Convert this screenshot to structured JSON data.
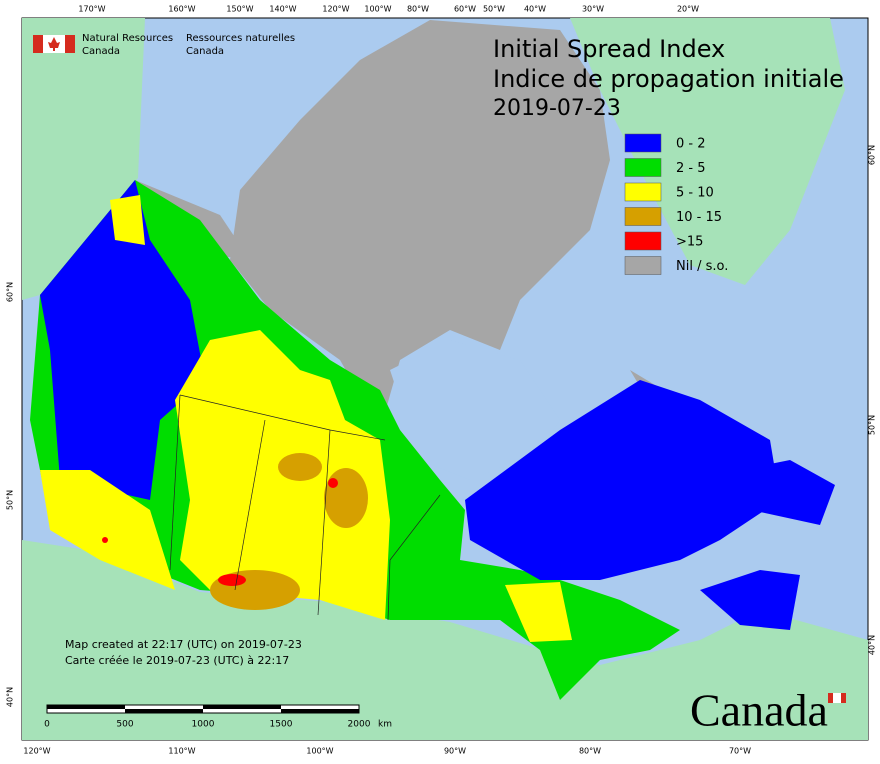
{
  "header": {
    "org_en": [
      "Natural Resources",
      "Canada"
    ],
    "org_fr": [
      "Ressources naturelles",
      "Canada"
    ]
  },
  "title": [
    "Initial Spread Index",
    "Indice de propagation initiale",
    "2019-07-23"
  ],
  "legend": [
    {
      "label": "0 - 2",
      "color": "#0000ff"
    },
    {
      "label": "2 - 5",
      "color": "#00dd00"
    },
    {
      "label": "5 - 10",
      "color": "#ffff00"
    },
    {
      "label": "10 - 15",
      "color": "#d6a000"
    },
    {
      "label": ">15",
      "color": "#ff0000"
    },
    {
      "label": "Nil / s.o.",
      "color": "#a6a6a6"
    }
  ],
  "graticule": {
    "top": [
      "170°W",
      "160°W",
      "150°W",
      "140°W",
      "120°W",
      "100°W",
      "80°W",
      "60°W",
      "50°W",
      "40°W",
      "30°W",
      "20°W"
    ],
    "bottom": [
      "120°W",
      "110°W",
      "100°W",
      "90°W",
      "80°W",
      "70°W"
    ],
    "left": [
      "60°N",
      "50°N",
      "40°N"
    ],
    "right": [
      "60°N",
      "50°N",
      "40°N"
    ]
  },
  "notes": [
    "Map created at 22:17 (UTC) on 2019-07-23",
    "Carte créée le 2019-07-23 (UTC) à 22:17"
  ],
  "scale": [
    "0",
    "500",
    "1000",
    "1500",
    "2000",
    "km"
  ],
  "wordmark": "Canada"
}
